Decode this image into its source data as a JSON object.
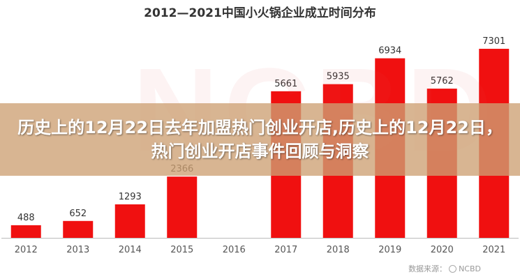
{
  "watermark": "NCBD",
  "banner": {
    "title": "历史上的12月22日去年加盟热门创业开店,历史上的12月22日，热门创业开店事件回顾与洞察"
  },
  "source": {
    "label": "数据来源：",
    "name": "NCBD"
  },
  "colors": {
    "bar": "#f01010",
    "axis": "#bbbbbb",
    "banner": "#cda073"
  },
  "chart_data": {
    "type": "bar",
    "title": "2012—2021中国小火锅企业成立时间分布",
    "categories": [
      "2012",
      "2013",
      "2014",
      "2015",
      "2016",
      "2017",
      "2018",
      "2019",
      "2020",
      "2021"
    ],
    "values": [
      488,
      652,
      1293,
      2366,
      null,
      5661,
      5935,
      6934,
      5762,
      7301
    ],
    "value_labels": [
      "488",
      "652",
      "1293",
      "2366",
      "",
      "5661",
      "5935",
      "6934",
      "5762",
      "7301"
    ],
    "ylim": [
      0,
      8000
    ],
    "xlabel": "",
    "ylabel": "",
    "grid": false,
    "legend": "none"
  }
}
